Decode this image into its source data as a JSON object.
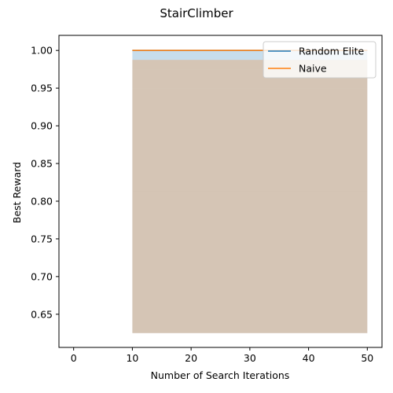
{
  "chart_data": {
    "type": "area",
    "title": "StairClimber",
    "xlabel": "Number of Search Iterations",
    "ylabel": "Best Reward",
    "xlim": [
      -2.5,
      52.5
    ],
    "ylim": [
      0.606,
      1.02
    ],
    "x_ticks": [
      0,
      10,
      20,
      30,
      40,
      50
    ],
    "x_tick_labels": [
      "0",
      "10",
      "20",
      "30",
      "40",
      "50"
    ],
    "y_ticks": [
      0.65,
      0.7,
      0.75,
      0.8,
      0.85,
      0.9,
      0.95,
      1.0
    ],
    "y_tick_labels": [
      "0.65",
      "0.70",
      "0.75",
      "0.80",
      "0.85",
      "0.90",
      "0.95",
      "1.00"
    ],
    "grid": false,
    "legend_position": "top-right",
    "series": [
      {
        "name": "Random Elite",
        "color": "#1f77b4",
        "x": [
          10,
          50
        ],
        "mean": [
          1.0,
          1.0
        ],
        "bands": [
          {
            "lower": 0.625,
            "upper": 0.8125
          },
          {
            "lower": 0.8125,
            "upper": 0.875
          },
          {
            "lower": 0.875,
            "upper": 0.95
          },
          {
            "lower": 0.95,
            "upper": 0.975
          },
          {
            "lower": 0.975,
            "upper": 0.9875
          },
          {
            "lower": 0.9875,
            "upper": 1.0
          }
        ]
      },
      {
        "name": "Naive",
        "color": "#ff7f0e",
        "x": [
          10,
          50
        ],
        "mean": [
          1.0,
          1.0
        ],
        "bands": [
          {
            "lower": 0.625,
            "upper": 0.8125
          },
          {
            "lower": 0.8125,
            "upper": 0.875
          },
          {
            "lower": 0.875,
            "upper": 0.95
          },
          {
            "lower": 0.95,
            "upper": 0.975
          },
          {
            "lower": 0.975,
            "upper": 0.9875
          }
        ]
      }
    ]
  }
}
